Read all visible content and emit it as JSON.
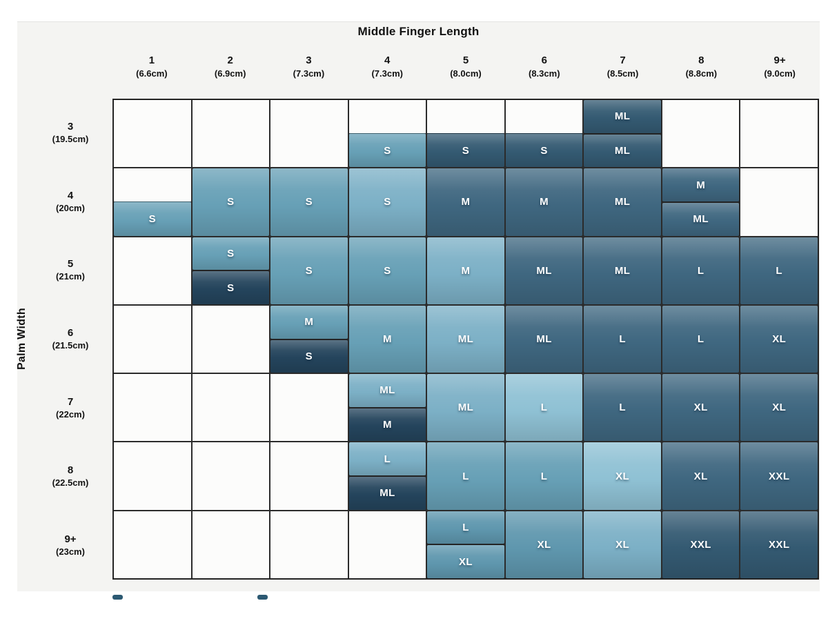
{
  "chart_data": {
    "type": "heatmap",
    "title": "Middle Finger Length",
    "xlabel": "Middle Finger Length",
    "ylabel": "Palm Width",
    "columns": [
      {
        "size": "1",
        "cm": "(6.6cm)"
      },
      {
        "size": "2",
        "cm": "(6.9cm)"
      },
      {
        "size": "3",
        "cm": "(7.3cm)"
      },
      {
        "size": "4",
        "cm": "(7.3cm)"
      },
      {
        "size": "5",
        "cm": "(8.0cm)"
      },
      {
        "size": "6",
        "cm": "(8.3cm)"
      },
      {
        "size": "7",
        "cm": "(8.5cm)"
      },
      {
        "size": "8",
        "cm": "(8.8cm)"
      },
      {
        "size": "9+",
        "cm": "(9.0cm)"
      }
    ],
    "rows": [
      {
        "size": "3",
        "cm": "(19.5cm)"
      },
      {
        "size": "4",
        "cm": "(20cm)"
      },
      {
        "size": "5",
        "cm": "(21cm)"
      },
      {
        "size": "6",
        "cm": "(21.5cm)"
      },
      {
        "size": "7",
        "cm": "(22cm)"
      },
      {
        "size": "8",
        "cm": "(22.5cm)"
      },
      {
        "size": "9+",
        "cm": "(23cm)"
      }
    ],
    "palette": {
      "lightest": "#8fc1d4",
      "light": "#7cb0c6",
      "medium": "#67a0b6",
      "medium2": "#5f97ae",
      "dark": "#3f6780",
      "dark2": "#345a72",
      "navy": "#24445c"
    },
    "empty_color": "#fcfcfb",
    "matrix": [
      [
        {
          "t": "empty"
        },
        {
          "t": "empty"
        },
        {
          "t": "empty"
        },
        {
          "t": "split",
          "top": null,
          "bottom": {
            "label": "S",
            "color": "medium"
          }
        },
        {
          "t": "split",
          "top": null,
          "bottom": {
            "label": "S",
            "color": "dark2"
          }
        },
        {
          "t": "split",
          "top": null,
          "bottom": {
            "label": "S",
            "color": "dark2"
          }
        },
        {
          "t": "split",
          "top": {
            "label": "ML",
            "color": "dark2"
          },
          "bottom": {
            "label": "ML",
            "color": "dark2"
          }
        },
        {
          "t": "empty"
        },
        {
          "t": "empty"
        }
      ],
      [
        {
          "t": "split",
          "top": null,
          "bottom": {
            "label": "S",
            "color": "medium"
          }
        },
        {
          "t": "full",
          "label": "S",
          "color": "medium"
        },
        {
          "t": "full",
          "label": "S",
          "color": "medium"
        },
        {
          "t": "full",
          "label": "S",
          "color": "light"
        },
        {
          "t": "full",
          "label": "M",
          "color": "dark"
        },
        {
          "t": "full",
          "label": "M",
          "color": "dark"
        },
        {
          "t": "full",
          "label": "ML",
          "color": "dark"
        },
        {
          "t": "split",
          "top": {
            "label": "M",
            "color": "dark"
          },
          "bottom": {
            "label": "ML",
            "color": "dark"
          }
        },
        {
          "t": "empty"
        }
      ],
      [
        {
          "t": "empty"
        },
        {
          "t": "split",
          "top": {
            "label": "S",
            "color": "medium"
          },
          "bottom": {
            "label": "S",
            "color": "navy"
          }
        },
        {
          "t": "full",
          "label": "S",
          "color": "medium"
        },
        {
          "t": "full",
          "label": "S",
          "color": "medium"
        },
        {
          "t": "full",
          "label": "M",
          "color": "light"
        },
        {
          "t": "full",
          "label": "ML",
          "color": "dark"
        },
        {
          "t": "full",
          "label": "ML",
          "color": "dark"
        },
        {
          "t": "full",
          "label": "L",
          "color": "dark"
        },
        {
          "t": "full",
          "label": "L",
          "color": "dark"
        }
      ],
      [
        {
          "t": "empty"
        },
        {
          "t": "empty"
        },
        {
          "t": "split",
          "top": {
            "label": "M",
            "color": "medium"
          },
          "bottom": {
            "label": "S",
            "color": "navy"
          }
        },
        {
          "t": "full",
          "label": "M",
          "color": "medium"
        },
        {
          "t": "full",
          "label": "ML",
          "color": "light"
        },
        {
          "t": "full",
          "label": "ML",
          "color": "dark"
        },
        {
          "t": "full",
          "label": "L",
          "color": "dark"
        },
        {
          "t": "full",
          "label": "L",
          "color": "dark"
        },
        {
          "t": "full",
          "label": "XL",
          "color": "dark"
        }
      ],
      [
        {
          "t": "empty"
        },
        {
          "t": "empty"
        },
        {
          "t": "empty"
        },
        {
          "t": "split",
          "top": {
            "label": "ML",
            "color": "light"
          },
          "bottom": {
            "label": "M",
            "color": "navy"
          }
        },
        {
          "t": "full",
          "label": "ML",
          "color": "light"
        },
        {
          "t": "full",
          "label": "L",
          "color": "lightest"
        },
        {
          "t": "full",
          "label": "L",
          "color": "dark"
        },
        {
          "t": "full",
          "label": "XL",
          "color": "dark"
        },
        {
          "t": "full",
          "label": "XL",
          "color": "dark"
        }
      ],
      [
        {
          "t": "empty"
        },
        {
          "t": "empty"
        },
        {
          "t": "empty"
        },
        {
          "t": "split",
          "top": {
            "label": "L",
            "color": "light"
          },
          "bottom": {
            "label": "ML",
            "color": "navy"
          }
        },
        {
          "t": "full",
          "label": "L",
          "color": "medium"
        },
        {
          "t": "full",
          "label": "L",
          "color": "medium"
        },
        {
          "t": "full",
          "label": "XL",
          "color": "lightest"
        },
        {
          "t": "full",
          "label": "XL",
          "color": "dark"
        },
        {
          "t": "full",
          "label": "XXL",
          "color": "dark"
        }
      ],
      [
        {
          "t": "empty"
        },
        {
          "t": "empty"
        },
        {
          "t": "empty"
        },
        {
          "t": "empty"
        },
        {
          "t": "split",
          "top": {
            "label": "L",
            "color": "medium2"
          },
          "bottom": {
            "label": "XL",
            "color": "medium2"
          }
        },
        {
          "t": "full",
          "label": "XL",
          "color": "medium2"
        },
        {
          "t": "full",
          "label": "XL",
          "color": "light"
        },
        {
          "t": "full",
          "label": "XXL",
          "color": "dark2"
        },
        {
          "t": "full",
          "label": "XXL",
          "color": "dark2"
        }
      ]
    ],
    "legend_stubs": {
      "count": 2,
      "color": "#2c5972",
      "x_positions": [
        163,
        373
      ]
    }
  }
}
